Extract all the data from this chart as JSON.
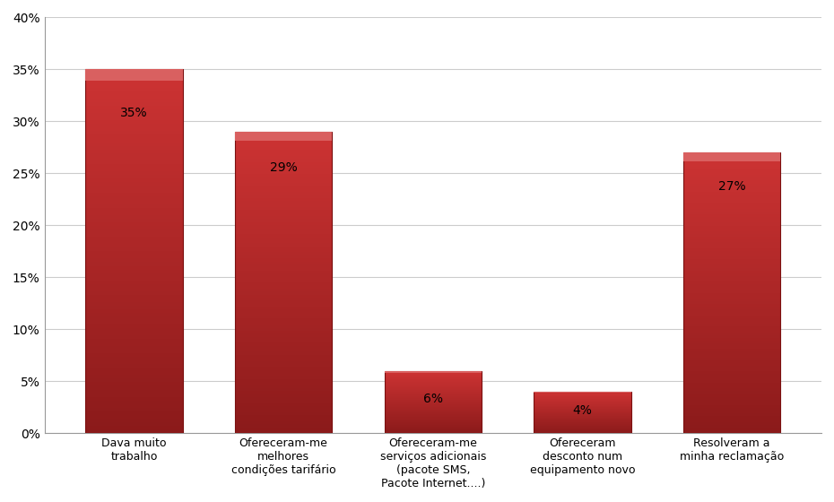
{
  "categories": [
    "Dava muito\ntrabalho",
    "Ofereceram-me\nmelhores\ncondições tarifário",
    "Ofereceram-me\nserviços adicionais\n(pacote SMS,\nPacote Internet....)",
    "Ofereceram\ndesconto num\nequipamento novo",
    "Resolveram a\nminha reclamação"
  ],
  "values": [
    35,
    29,
    6,
    4,
    27
  ],
  "labels": [
    "35%",
    "29%",
    "6%",
    "4%",
    "27%"
  ],
  "bar_color_top": "#CD3333",
  "bar_color_bottom": "#8B1A1A",
  "bar_edge_color": "#7B1010",
  "background_color": "#FFFFFF",
  "grid_color": "#CCCCCC",
  "ylim": [
    0,
    40
  ],
  "yticks": [
    0,
    5,
    10,
    15,
    20,
    25,
    30,
    35,
    40
  ],
  "ytick_labels": [
    "0%",
    "5%",
    "10%",
    "15%",
    "20%",
    "25%",
    "30%",
    "35%",
    "40%"
  ],
  "tick_fontsize": 10,
  "bar_label_fontsize": 10,
  "xtick_fontsize": 9,
  "figsize": [
    9.3,
    5.6
  ],
  "dpi": 100
}
